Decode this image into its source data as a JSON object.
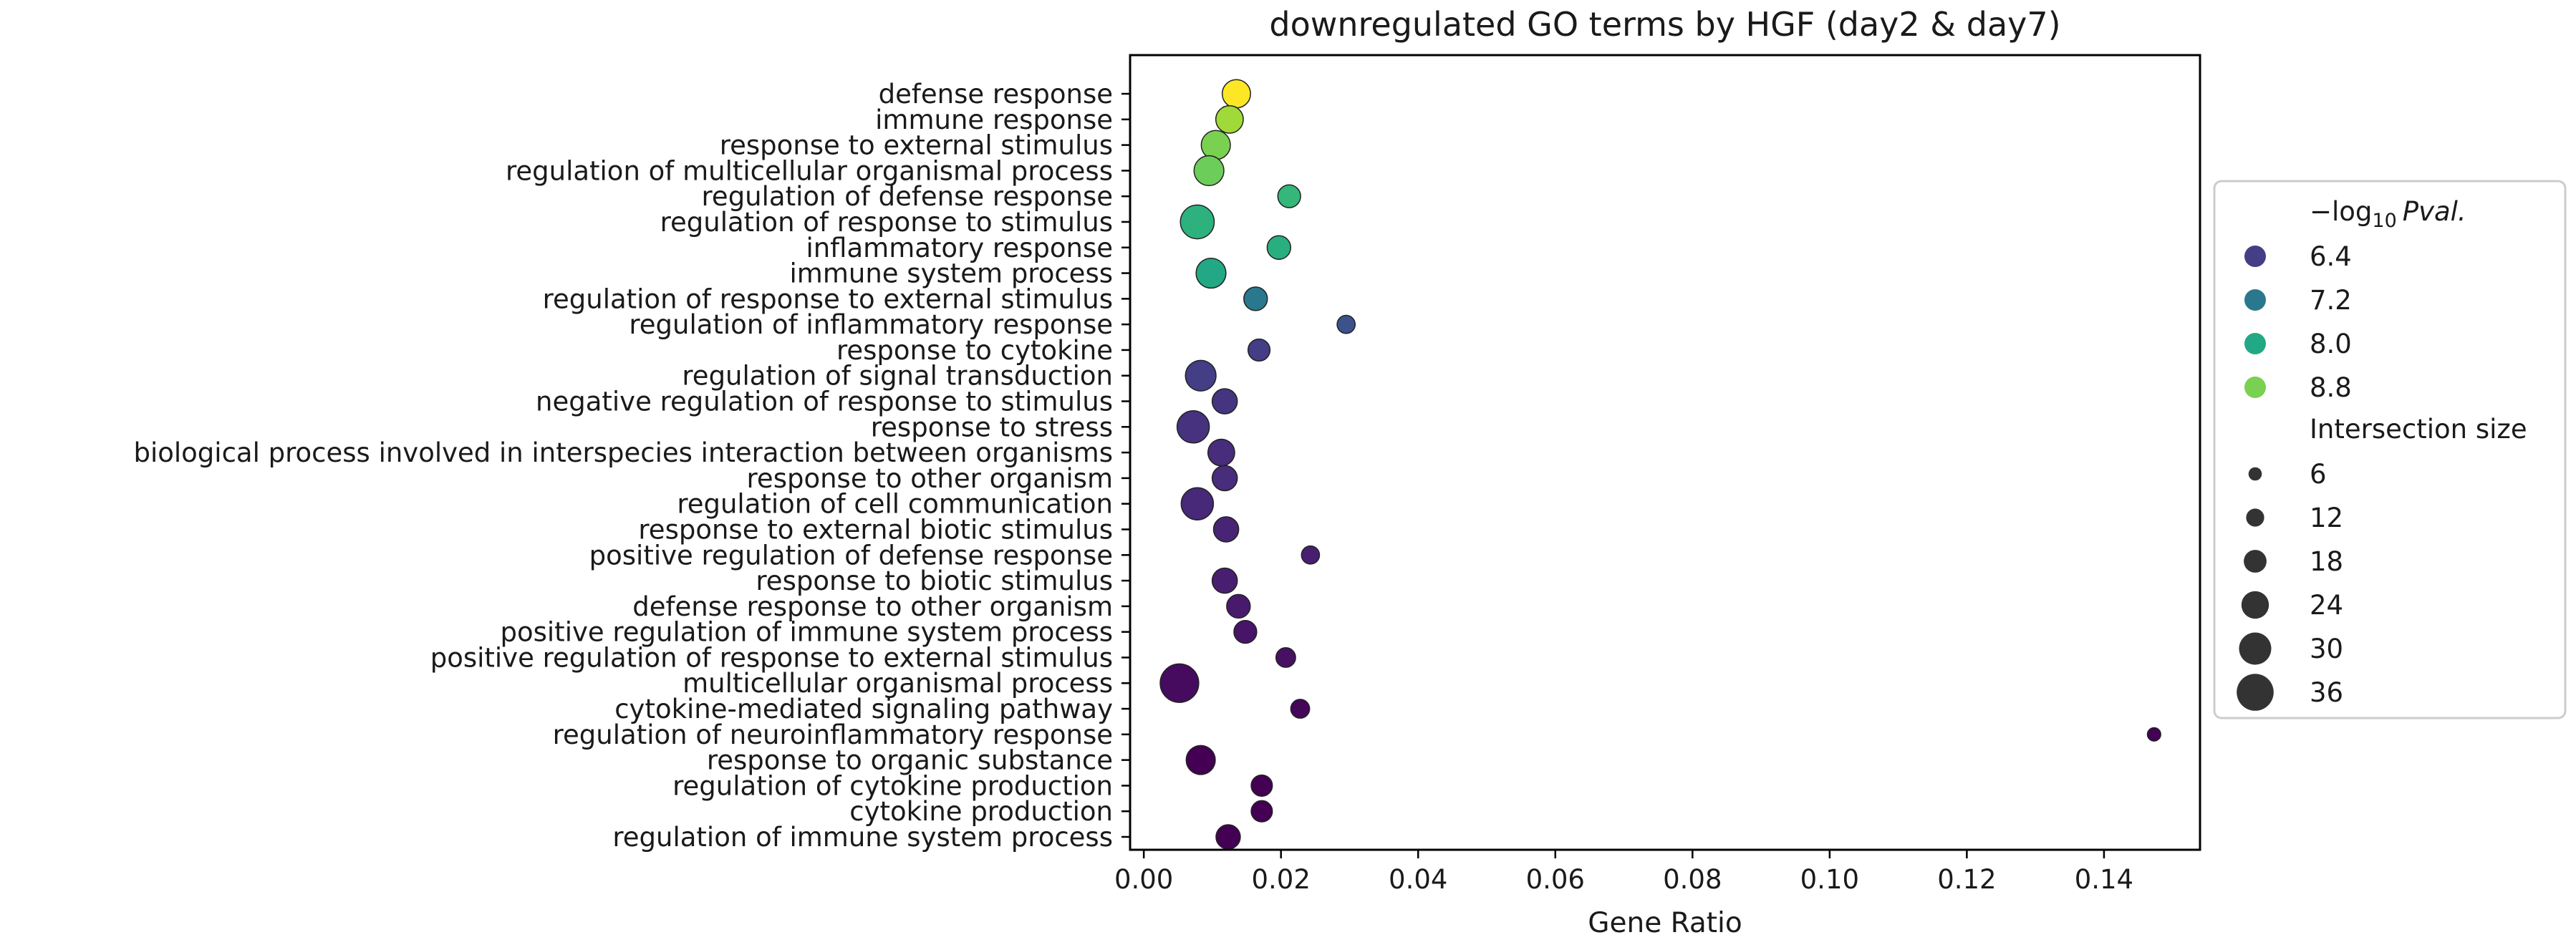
{
  "chart_data": {
    "type": "scatter",
    "title": "downregulated GO terms by HGF (day2 & day7)",
    "xlabel": "Gene Ratio",
    "ylabel": "",
    "xlim": [
      -0.002,
      0.154
    ],
    "xticks": [
      "0.00",
      "0.02",
      "0.04",
      "0.06",
      "0.08",
      "0.10",
      "0.12",
      "0.14"
    ],
    "grid": false,
    "legend": {
      "placement": "right",
      "color_title_prefix": "−log",
      "color_title_sub": "10",
      "color_title_suffix": "Pval.",
      "color_levels": [
        {
          "label": "6.4",
          "color": "#433e85"
        },
        {
          "label": "7.2",
          "color": "#2a788e"
        },
        {
          "label": "8.0",
          "color": "#22a884"
        },
        {
          "label": "8.8",
          "color": "#7ad151"
        }
      ],
      "size_title": "Intersection size",
      "size_levels": [
        {
          "label": "6",
          "value": 6
        },
        {
          "label": "12",
          "value": 12
        },
        {
          "label": "18",
          "value": 18
        },
        {
          "label": "24",
          "value": 24
        },
        {
          "label": "30",
          "value": 30
        },
        {
          "label": "36",
          "value": 36
        }
      ]
    },
    "points": [
      {
        "term": "defense response",
        "x": 0.0135,
        "size": 25,
        "color": "#fde725"
      },
      {
        "term": "immune response",
        "x": 0.0125,
        "size": 24,
        "color": "#a0da39"
      },
      {
        "term": "response to external stimulus",
        "x": 0.0105,
        "size": 26,
        "color": "#7ad151"
      },
      {
        "term": "regulation of multicellular organismal process",
        "x": 0.0095,
        "size": 27,
        "color": "#6ccd5a"
      },
      {
        "term": "regulation of defense response",
        "x": 0.0212,
        "size": 18,
        "color": "#35b779"
      },
      {
        "term": "regulation of response to stimulus",
        "x": 0.0078,
        "size": 32,
        "color": "#2db27d"
      },
      {
        "term": "inflammatory response",
        "x": 0.0197,
        "size": 19,
        "color": "#29af7f"
      },
      {
        "term": "immune system process",
        "x": 0.0098,
        "size": 27,
        "color": "#22a884"
      },
      {
        "term": "regulation of response to external stimulus",
        "x": 0.0163,
        "size": 19,
        "color": "#2a788e"
      },
      {
        "term": "regulation of inflammatory response",
        "x": 0.0295,
        "size": 12,
        "color": "#3b528b"
      },
      {
        "term": "response to cytokine",
        "x": 0.0168,
        "size": 17,
        "color": "#433e85"
      },
      {
        "term": "regulation of signal transduction",
        "x": 0.0083,
        "size": 28,
        "color": "#433e85"
      },
      {
        "term": "negative regulation of response to stimulus",
        "x": 0.0118,
        "size": 21,
        "color": "#453581"
      },
      {
        "term": "response to stress",
        "x": 0.0072,
        "size": 30,
        "color": "#46327e"
      },
      {
        "term": "biological process involved in interspecies interaction between organisms",
        "x": 0.0113,
        "size": 23,
        "color": "#472d7b"
      },
      {
        "term": "response to other organism",
        "x": 0.0118,
        "size": 21,
        "color": "#472d7b"
      },
      {
        "term": "regulation of cell communication",
        "x": 0.0078,
        "size": 30,
        "color": "#482878"
      },
      {
        "term": "response to external biotic stimulus",
        "x": 0.012,
        "size": 21,
        "color": "#482475"
      },
      {
        "term": "positive regulation of defense response",
        "x": 0.0243,
        "size": 12,
        "color": "#481f70"
      },
      {
        "term": "response to biotic stimulus",
        "x": 0.0118,
        "size": 21,
        "color": "#481f70"
      },
      {
        "term": "defense response to other organism",
        "x": 0.0138,
        "size": 19,
        "color": "#481a6c"
      },
      {
        "term": "positive regulation of immune system process",
        "x": 0.0148,
        "size": 18,
        "color": "#481467"
      },
      {
        "term": "positive regulation of response to external stimulus",
        "x": 0.0207,
        "size": 14,
        "color": "#471063"
      },
      {
        "term": "multicellular organismal process",
        "x": 0.0052,
        "size": 38,
        "color": "#460b5e"
      },
      {
        "term": "cytokine-mediated signaling pathway",
        "x": 0.0228,
        "size": 13,
        "color": "#450559"
      },
      {
        "term": "regulation of neuroinflammatory response",
        "x": 0.1473,
        "size": 6,
        "color": "#440256"
      },
      {
        "term": "response to organic substance",
        "x": 0.0083,
        "size": 26,
        "color": "#440154"
      },
      {
        "term": "regulation of cytokine production",
        "x": 0.0172,
        "size": 16,
        "color": "#440154"
      },
      {
        "term": "cytokine production",
        "x": 0.0172,
        "size": 16,
        "color": "#440154"
      },
      {
        "term": "regulation of immune system process",
        "x": 0.0123,
        "size": 20,
        "color": "#440154"
      }
    ]
  }
}
